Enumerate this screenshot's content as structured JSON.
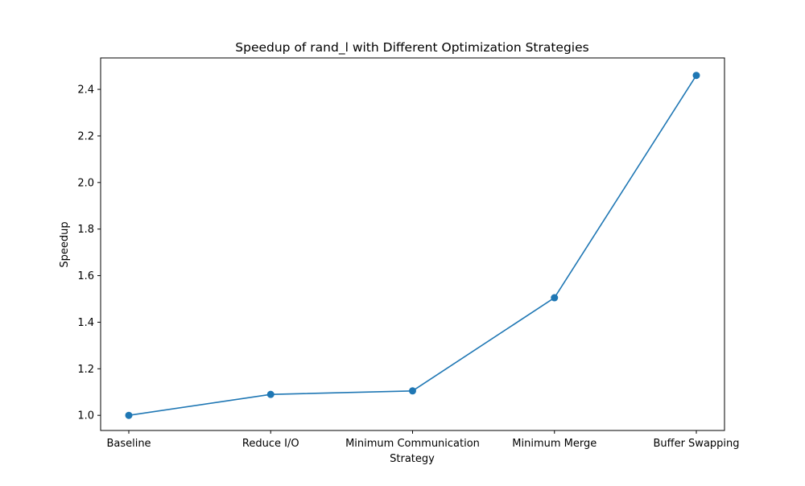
{
  "chart_data": {
    "type": "line",
    "title": "Speedup of rand_l with Different Optimization Strategies",
    "xlabel": "Strategy",
    "ylabel": "Speedup",
    "categories": [
      "Baseline",
      "Reduce I/O",
      "Minimum Communication",
      "Minimum Merge",
      "Buffer Swapping"
    ],
    "series": [
      {
        "values": [
          1.0,
          1.09,
          1.105,
          1.505,
          2.46
        ],
        "color": "#1f77b4",
        "marker": "circle"
      }
    ],
    "ylim": [
      0.935,
      2.535
    ],
    "yticks": [
      1.0,
      1.2,
      1.4,
      1.6,
      1.8,
      2.0,
      2.2,
      2.4
    ],
    "ytick_labels": [
      "1.0",
      "1.2",
      "1.4",
      "1.6",
      "1.8",
      "2.0",
      "2.2",
      "2.4"
    ],
    "grid": false,
    "legend": "none"
  }
}
